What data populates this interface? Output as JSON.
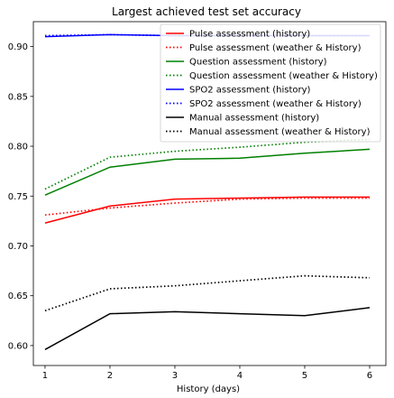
{
  "chart_data": {
    "type": "line",
    "title": "Largest achieved test set accuracy",
    "xlabel": "History (days)",
    "ylabel": "",
    "x": [
      1,
      2,
      3,
      4,
      5,
      6
    ],
    "xlim": [
      0.82,
      6.25
    ],
    "ylim": [
      0.58,
      0.925
    ],
    "xticks": [
      1,
      2,
      3,
      4,
      5,
      6
    ],
    "yticks": [
      0.6,
      0.65,
      0.7,
      0.75,
      0.8,
      0.85,
      0.9
    ],
    "ytick_labels": [
      "0.60",
      "0.65",
      "0.70",
      "0.75",
      "0.80",
      "0.85",
      "0.90"
    ],
    "legend_position": "top-right",
    "grid": false,
    "series": [
      {
        "name": "Pulse assessment (history)",
        "color": "#ff0000",
        "style": "solid",
        "values": [
          0.723,
          0.74,
          0.747,
          0.748,
          0.749,
          0.749
        ]
      },
      {
        "name": "Pulse assessment (weather & History)",
        "color": "#ff0000",
        "style": "dotted",
        "values": [
          0.731,
          0.738,
          0.743,
          0.747,
          0.748,
          0.748
        ]
      },
      {
        "name": "Question assessment (history)",
        "color": "#008000",
        "style": "solid",
        "values": [
          0.751,
          0.779,
          0.787,
          0.788,
          0.793,
          0.797
        ]
      },
      {
        "name": "Question assessment (weather & History)",
        "color": "#008000",
        "style": "dotted",
        "values": [
          0.757,
          0.789,
          0.795,
          0.799,
          0.804,
          0.807
        ]
      },
      {
        "name": "SPO2 assessment (history)",
        "color": "#0000ff",
        "style": "solid",
        "values": [
          0.91,
          0.912,
          0.911,
          0.911,
          0.911,
          0.911
        ]
      },
      {
        "name": "SPO2 assessment (weather & History)",
        "color": "#0000ff",
        "style": "dotted",
        "values": [
          0.911,
          0.912,
          0.911,
          0.911,
          0.911,
          0.911
        ]
      },
      {
        "name": "Manual assessment (history)",
        "color": "#000000",
        "style": "solid",
        "values": [
          0.596,
          0.632,
          0.634,
          0.632,
          0.63,
          0.638
        ]
      },
      {
        "name": "Manual assessment (weather & History)",
        "color": "#000000",
        "style": "dotted",
        "values": [
          0.635,
          0.657,
          0.66,
          0.665,
          0.67,
          0.668
        ]
      }
    ]
  }
}
